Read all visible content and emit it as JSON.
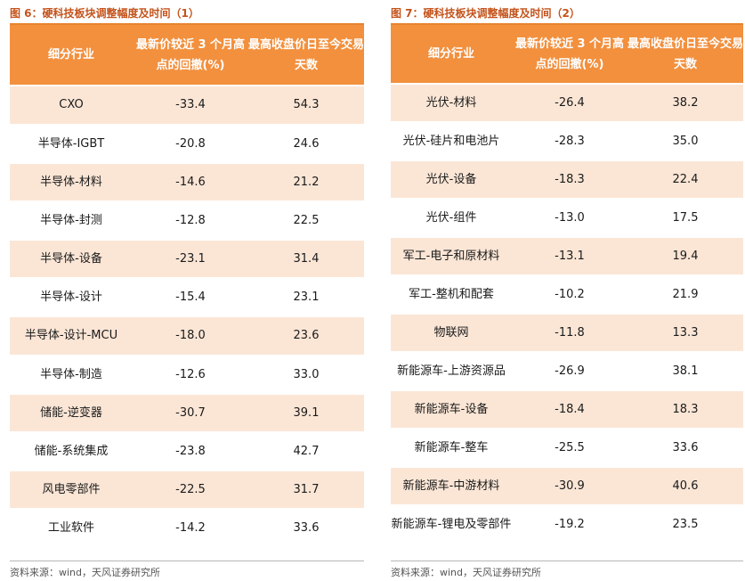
{
  "left": {
    "title": "图 6：硬科技板块调整幅度及时间（1）",
    "headers": [
      "细分行业",
      "最新价较近 3 个月高点的回撤(%)",
      "最高收盘价日至今交易天数"
    ],
    "rows": [
      [
        "CXO",
        "-33.4",
        "54.3"
      ],
      [
        "半导体-IGBT",
        "-20.8",
        "24.6"
      ],
      [
        "半导体-材料",
        "-14.6",
        "21.2"
      ],
      [
        "半导体-封测",
        "-12.8",
        "22.5"
      ],
      [
        "半导体-设备",
        "-23.1",
        "31.4"
      ],
      [
        "半导体-设计",
        "-15.4",
        "23.1"
      ],
      [
        "半导体-设计-MCU",
        "-18.0",
        "23.6"
      ],
      [
        "半导体-制造",
        "-12.6",
        "33.0"
      ],
      [
        "储能-逆变器",
        "-30.7",
        "39.1"
      ],
      [
        "储能-系统集成",
        "-23.8",
        "42.7"
      ],
      [
        "风电零部件",
        "-22.5",
        "31.7"
      ],
      [
        "工业软件",
        "-14.2",
        "33.6"
      ]
    ],
    "source": "资料来源：wind，天风证券研究所"
  },
  "right": {
    "title": "图 7：硬科技板块调整幅度及时间（2）",
    "headers": [
      "细分行业",
      "最新价较近 3 个月高点的回撤(%)",
      "最高收盘价日至今交易天数"
    ],
    "rows": [
      [
        "光伏-材料",
        "-26.4",
        "38.2"
      ],
      [
        "光伏-硅片和电池片",
        "-28.3",
        "35.0"
      ],
      [
        "光伏-设备",
        "-18.3",
        "22.4"
      ],
      [
        "光伏-组件",
        "-13.0",
        "17.5"
      ],
      [
        "军工-电子和原材料",
        "-13.1",
        "19.4"
      ],
      [
        "军工-整机和配套",
        "-10.2",
        "21.9"
      ],
      [
        "物联网",
        "-11.8",
        "13.3"
      ],
      [
        "新能源车-上游资源品",
        "-26.9",
        "38.1"
      ],
      [
        "新能源车-设备",
        "-18.4",
        "18.3"
      ],
      [
        "新能源车-整车",
        "-25.5",
        "33.6"
      ],
      [
        "新能源车-中游材料",
        "-30.9",
        "40.6"
      ],
      [
        "新能源车-锂电及零部件",
        "-19.2",
        "23.5"
      ]
    ],
    "source": "资料来源：wind，天风证券研究所"
  },
  "colors": {
    "title": "#c4531b",
    "header_bg": "#f2903e",
    "row_shade": "#fbe6d6",
    "rule": "#e8832f"
  }
}
